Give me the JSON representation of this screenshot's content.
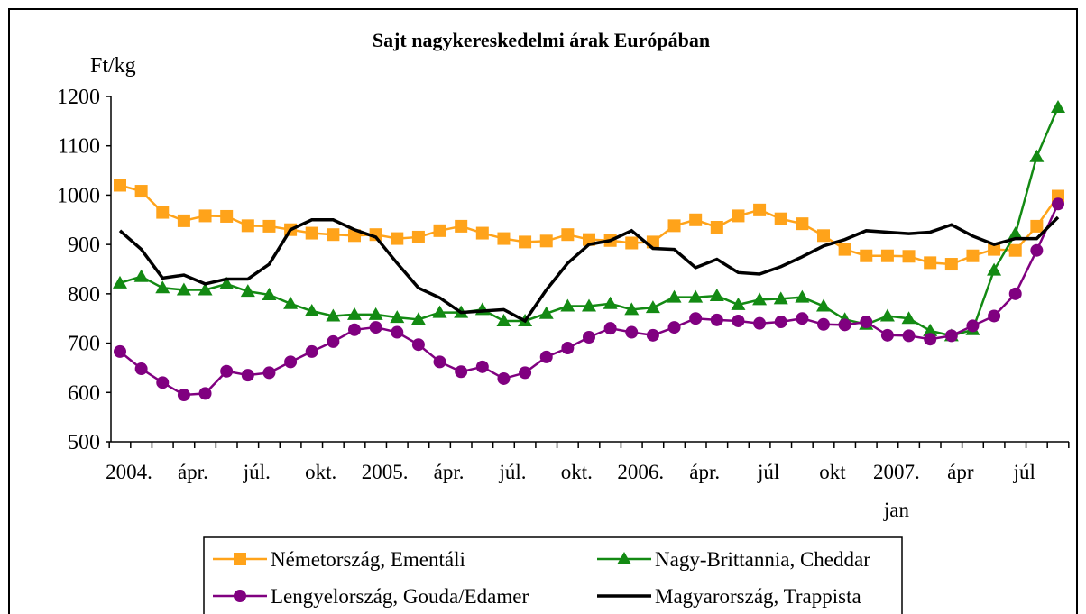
{
  "chart_data": {
    "type": "line",
    "title": "Sajt nagykereskedelmi árak Európában",
    "y_label": "Ft/kg",
    "categories": [
      "2004.",
      null,
      null,
      "ápr.",
      null,
      null,
      "júl.",
      null,
      null,
      "okt.",
      null,
      null,
      "2005.",
      null,
      null,
      "ápr.",
      null,
      null,
      "júl.",
      null,
      null,
      "okt.",
      null,
      null,
      "2006.",
      null,
      null,
      "ápr.",
      null,
      null,
      "júl",
      null,
      null,
      "okt",
      null,
      null,
      "2007.\njan",
      null,
      null,
      "ápr",
      null,
      null,
      "júl",
      null,
      null
    ],
    "ylim": [
      500,
      1200
    ],
    "yticks": [
      500,
      600,
      700,
      800,
      900,
      1000,
      1100,
      1200
    ],
    "series": [
      {
        "name": "Németország, Ementáli",
        "color": "#ffa31a",
        "marker": "square",
        "values": [
          1020,
          1008,
          965,
          948,
          958,
          957,
          938,
          937,
          930,
          923,
          920,
          918,
          920,
          912,
          915,
          928,
          937,
          923,
          912,
          905,
          907,
          920,
          910,
          908,
          903,
          905,
          938,
          950,
          935,
          958,
          970,
          952,
          942,
          918,
          890,
          877,
          877,
          876,
          863,
          860,
          877,
          890,
          888,
          937,
          998
        ]
      },
      {
        "name": "Nagy-Brittannia, Cheddar",
        "color": "#138a13",
        "marker": "triangle",
        "values": [
          822,
          835,
          812,
          808,
          808,
          820,
          805,
          798,
          780,
          765,
          755,
          758,
          758,
          752,
          748,
          762,
          762,
          768,
          745,
          745,
          760,
          775,
          775,
          780,
          768,
          772,
          793,
          793,
          796,
          778,
          788,
          790,
          793,
          775,
          748,
          738,
          755,
          750,
          725,
          715,
          727,
          848,
          922,
          1078,
          1178
        ]
      },
      {
        "name": "Lengyelország, Gouda/Edamer",
        "color": "#800080",
        "marker": "circle",
        "values": [
          683,
          648,
          620,
          595,
          598,
          643,
          635,
          640,
          662,
          683,
          703,
          727,
          732,
          722,
          697,
          662,
          642,
          652,
          628,
          640,
          672,
          690,
          712,
          730,
          722,
          716,
          732,
          750,
          747,
          745,
          740,
          743,
          750,
          738,
          737,
          743,
          716,
          715,
          708,
          715,
          735,
          755,
          800,
          888,
          982
        ]
      },
      {
        "name": "Magyarország, Trappista",
        "color": "#000000",
        "marker": "none",
        "values": [
          928,
          890,
          832,
          838,
          820,
          830,
          830,
          860,
          930,
          950,
          950,
          930,
          915,
          862,
          812,
          792,
          762,
          765,
          768,
          745,
          808,
          862,
          900,
          908,
          928,
          892,
          890,
          853,
          870,
          843,
          840,
          855,
          875,
          897,
          910,
          928,
          925,
          922,
          925,
          940,
          917,
          900,
          912,
          912,
          955
        ]
      }
    ]
  }
}
